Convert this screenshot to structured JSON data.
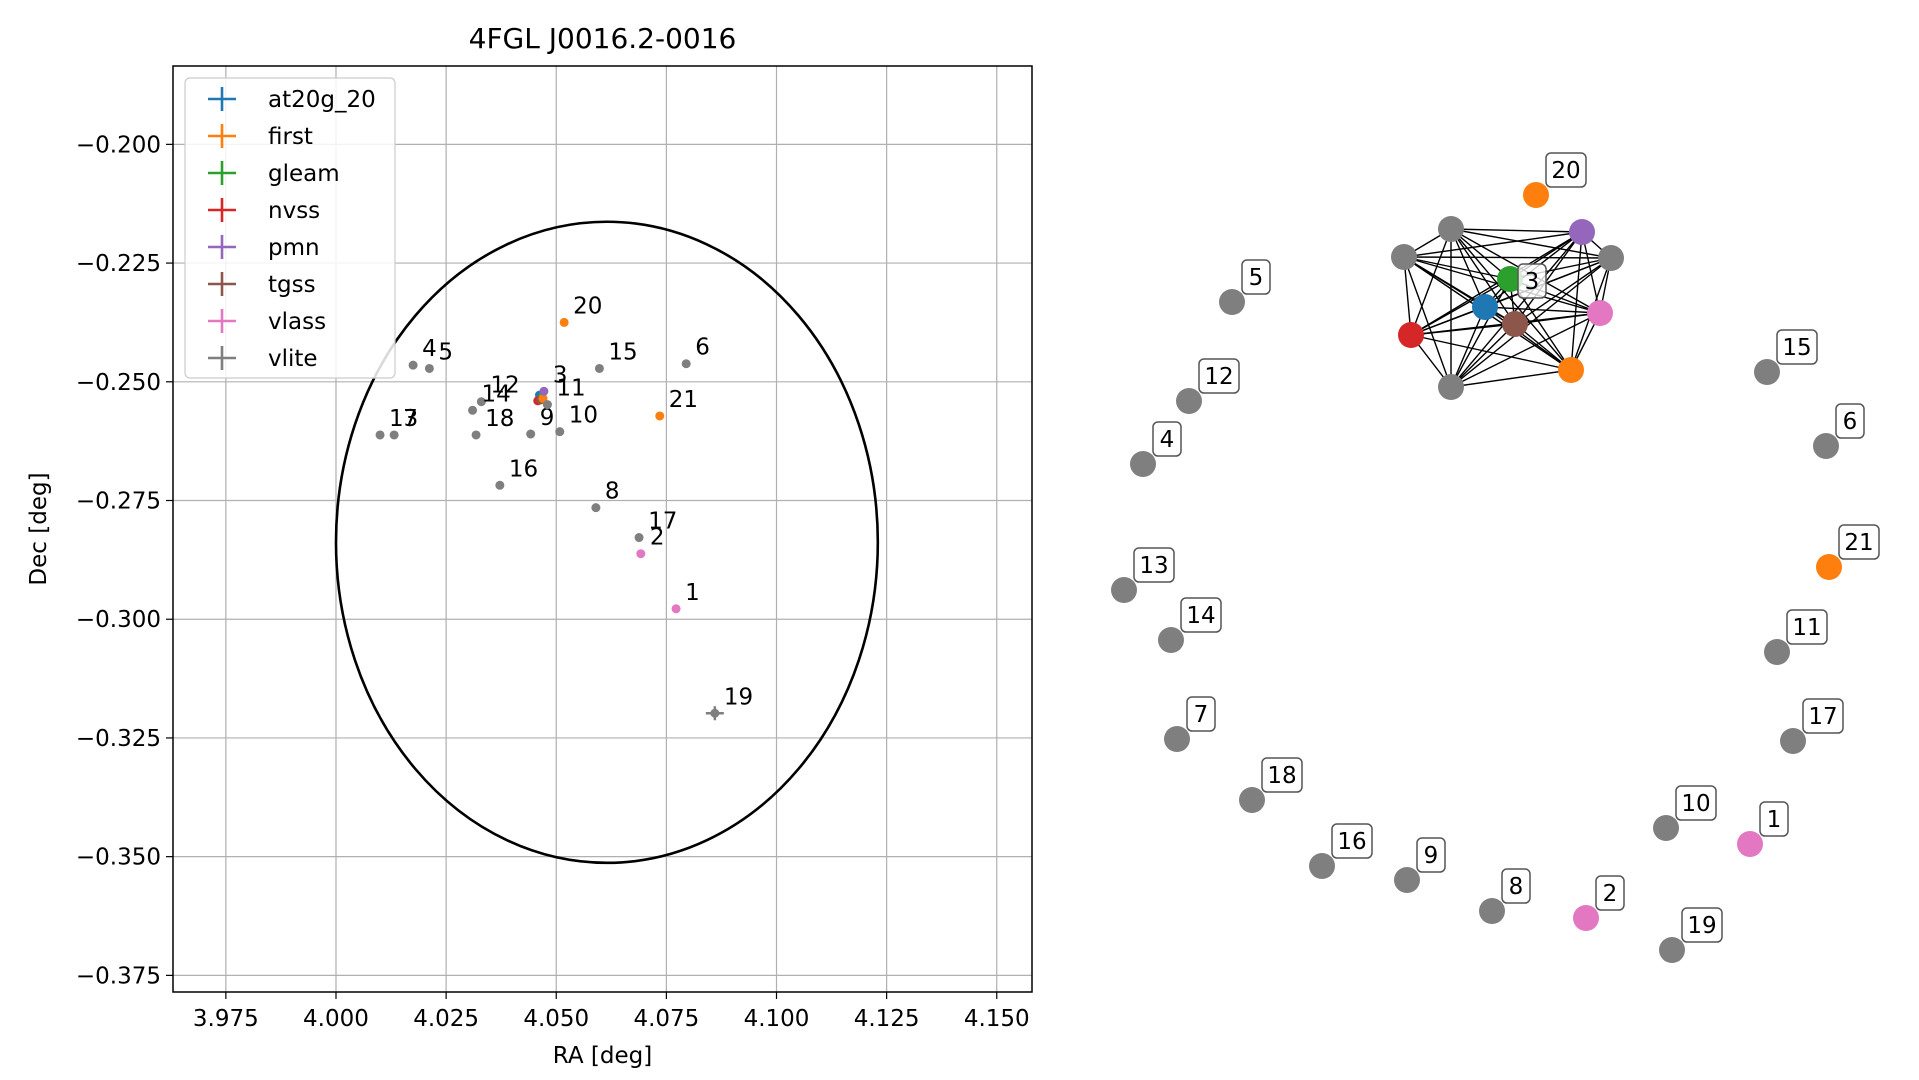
{
  "chart_data": [
    {
      "type": "scatter",
      "title": "4FGL J0016.2-0016",
      "xlabel": "RA [deg]",
      "ylabel": "Dec [deg]",
      "xlim": [
        3.963,
        4.158
      ],
      "ylim": [
        -0.3785,
        -0.1835
      ],
      "xticks": [
        3.975,
        4.0,
        4.025,
        4.05,
        4.075,
        4.1,
        4.125,
        4.15
      ],
      "xtick_labels": [
        "3.975",
        "4.000",
        "4.025",
        "4.050",
        "4.075",
        "4.100",
        "4.125",
        "4.150"
      ],
      "yticks": [
        -0.2,
        -0.225,
        -0.25,
        -0.275,
        -0.3,
        -0.325,
        -0.35,
        -0.375
      ],
      "ytick_labels": [
        "−0.200",
        "−0.225",
        "−0.250",
        "−0.275",
        "−0.300",
        "−0.325",
        "−0.350",
        "−0.375"
      ],
      "grid": true,
      "legend_position": "top-left",
      "series": [
        {
          "name": "at20g_20",
          "color": "#1f77b4"
        },
        {
          "name": "first",
          "color": "#ff7f0e"
        },
        {
          "name": "gleam",
          "color": "#2ca02c"
        },
        {
          "name": "nvss",
          "color": "#d62728"
        },
        {
          "name": "pmn",
          "color": "#9467bd"
        },
        {
          "name": "tgss",
          "color": "#8c564b"
        },
        {
          "name": "vlass",
          "color": "#e377c2"
        },
        {
          "name": "vlite",
          "color": "#7f7f7f"
        }
      ],
      "ellipse": {
        "center": [
          4.0615,
          -0.2838
        ],
        "semi_axis_ra": 0.0615,
        "semi_axis_dec": 0.0675
      },
      "points": [
        {
          "label": "1",
          "series": "vlass",
          "x": 4.0772,
          "y": -0.2978
        },
        {
          "label": "2",
          "series": "vlass",
          "x": 4.0692,
          "y": -0.2862
        },
        {
          "label": "3",
          "series": "pmn",
          "x": 4.0472,
          "y": -0.252
        },
        {
          "label": "4",
          "series": "vlite",
          "x": 4.0175,
          "y": -0.2465
        },
        {
          "label": "5",
          "series": "vlite",
          "x": 4.0212,
          "y": -0.2472
        },
        {
          "label": "6",
          "series": "vlite",
          "x": 4.0795,
          "y": -0.2462
        },
        {
          "label": "7",
          "series": "vlite",
          "x": 4.0132,
          "y": -0.2612
        },
        {
          "label": "8",
          "series": "vlite",
          "x": 4.059,
          "y": -0.2765
        },
        {
          "label": "9",
          "series": "vlite",
          "x": 4.0442,
          "y": -0.261
        },
        {
          "label": "10",
          "series": "vlite",
          "x": 4.0508,
          "y": -0.2605
        },
        {
          "label": "11",
          "series": "vlite",
          "x": 4.048,
          "y": -0.2548
        },
        {
          "label": "12",
          "series": "vlite",
          "x": 4.033,
          "y": -0.2542
        },
        {
          "label": "13",
          "series": "vlite",
          "x": 4.01,
          "y": -0.2612
        },
        {
          "label": "14",
          "series": "vlite",
          "x": 4.031,
          "y": -0.256
        },
        {
          "label": "15",
          "series": "vlite",
          "x": 4.0598,
          "y": -0.2472
        },
        {
          "label": "16",
          "series": "vlite",
          "x": 4.0372,
          "y": -0.2718
        },
        {
          "label": "17",
          "series": "vlite",
          "x": 4.0688,
          "y": -0.2828
        },
        {
          "label": "18",
          "series": "vlite",
          "x": 4.0318,
          "y": -0.2612
        },
        {
          "label": "19",
          "series": "vlite",
          "x": 4.086,
          "y": -0.3198
        },
        {
          "label": "20",
          "series": "first",
          "x": 4.0518,
          "y": -0.2375
        },
        {
          "label": "21",
          "series": "first",
          "x": 4.0735,
          "y": -0.2572
        }
      ],
      "cluster_points": [
        {
          "series": "at20g_20",
          "x": 4.0462,
          "y": -0.2528
        },
        {
          "series": "gleam",
          "x": 4.0468,
          "y": -0.2532
        },
        {
          "series": "nvss",
          "x": 4.0458,
          "y": -0.254
        },
        {
          "series": "tgss",
          "x": 4.0465,
          "y": -0.2538
        },
        {
          "series": "first",
          "x": 4.047,
          "y": -0.2535
        }
      ]
    },
    {
      "type": "network",
      "cluster_nodes": [
        {
          "series": "at20g_20",
          "label": ""
        },
        {
          "series": "gleam",
          "label": ""
        },
        {
          "series": "nvss",
          "label": ""
        },
        {
          "series": "tgss",
          "label": ""
        },
        {
          "series": "pmn",
          "label": ""
        },
        {
          "series": "vlass",
          "label": ""
        },
        {
          "series": "first",
          "label": ""
        },
        {
          "series": "vlite",
          "label": ""
        },
        {
          "series": "vlite",
          "label": ""
        },
        {
          "series": "vlite",
          "label": ""
        },
        {
          "series": "vlite",
          "label": ""
        }
      ],
      "cluster_label": "3",
      "edges": "all cluster nodes fully connected",
      "isolated_nodes": [
        {
          "label": "20",
          "series": "first"
        },
        {
          "label": "5",
          "series": "vlite"
        },
        {
          "label": "12",
          "series": "vlite"
        },
        {
          "label": "4",
          "series": "vlite"
        },
        {
          "label": "13",
          "series": "vlite"
        },
        {
          "label": "14",
          "series": "vlite"
        },
        {
          "label": "7",
          "series": "vlite"
        },
        {
          "label": "18",
          "series": "vlite"
        },
        {
          "label": "16",
          "series": "vlite"
        },
        {
          "label": "9",
          "series": "vlite"
        },
        {
          "label": "8",
          "series": "vlite"
        },
        {
          "label": "2",
          "series": "vlass"
        },
        {
          "label": "19",
          "series": "vlite"
        },
        {
          "label": "10",
          "series": "vlite"
        },
        {
          "label": "1",
          "series": "vlass"
        },
        {
          "label": "17",
          "series": "vlite"
        },
        {
          "label": "11",
          "series": "vlite"
        },
        {
          "label": "21",
          "series": "first"
        },
        {
          "label": "6",
          "series": "vlite"
        },
        {
          "label": "15",
          "series": "vlite"
        }
      ]
    }
  ]
}
